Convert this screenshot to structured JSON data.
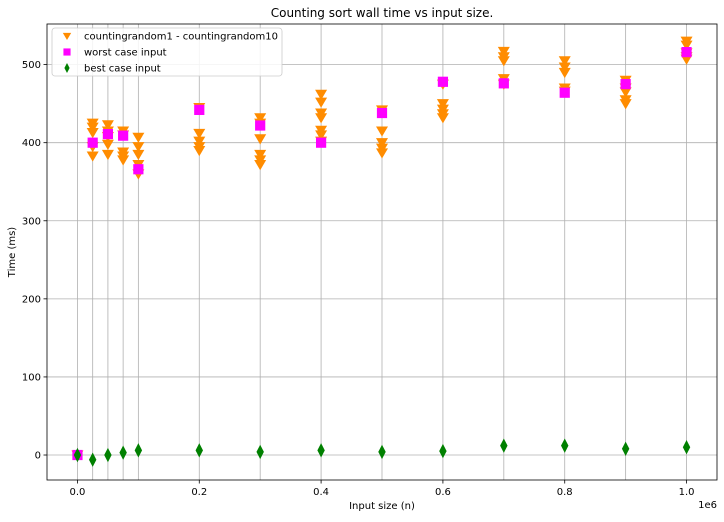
{
  "chart_data": {
    "type": "scatter",
    "title": "Counting sort wall time vs input size.",
    "xlabel": "Input size (n)",
    "ylabel": "Time (ms)",
    "x_offset_text": "1e6",
    "xlim": [
      -0.05,
      1.05
    ],
    "ylim": [
      -32,
      552
    ],
    "grid": true,
    "legend_position": "top-left",
    "x_ticks": [
      {
        "value": 0.0,
        "label": "0.0"
      },
      {
        "value": 0.2,
        "label": "0.2"
      },
      {
        "value": 0.4,
        "label": "0.4"
      },
      {
        "value": 0.6,
        "label": "0.6"
      },
      {
        "value": 0.8,
        "label": "0.8"
      },
      {
        "value": 1.0,
        "label": "1.0"
      }
    ],
    "y_ticks": [
      {
        "value": 0,
        "label": "0"
      },
      {
        "value": 100,
        "label": "100"
      },
      {
        "value": 200,
        "label": "200"
      },
      {
        "value": 300,
        "label": "300"
      },
      {
        "value": 400,
        "label": "400"
      },
      {
        "value": 500,
        "label": "500"
      }
    ],
    "grid_x": [
      0.0,
      0.2,
      0.4,
      0.6,
      0.8,
      1.0,
      0.025,
      0.05,
      0.075,
      0.1,
      0.3,
      0.5,
      0.7,
      0.9
    ],
    "series": [
      {
        "name": "countingrandom1 - countingrandom10",
        "marker": "triangle-down",
        "color": "#ff8c00",
        "points": [
          [
            0.0,
            0
          ],
          [
            0.025,
            425
          ],
          [
            0.025,
            420
          ],
          [
            0.025,
            413
          ],
          [
            0.025,
            395
          ],
          [
            0.025,
            383
          ],
          [
            0.05,
            423
          ],
          [
            0.05,
            415
          ],
          [
            0.05,
            408
          ],
          [
            0.05,
            398
          ],
          [
            0.05,
            385
          ],
          [
            0.075,
            415
          ],
          [
            0.075,
            410
          ],
          [
            0.075,
            388
          ],
          [
            0.075,
            383
          ],
          [
            0.075,
            378
          ],
          [
            0.1,
            407
          ],
          [
            0.1,
            395
          ],
          [
            0.1,
            385
          ],
          [
            0.1,
            372
          ],
          [
            0.1,
            360
          ],
          [
            0.2,
            445
          ],
          [
            0.2,
            412
          ],
          [
            0.2,
            402
          ],
          [
            0.2,
            395
          ],
          [
            0.2,
            390
          ],
          [
            0.3,
            432
          ],
          [
            0.3,
            425
          ],
          [
            0.3,
            405
          ],
          [
            0.3,
            385
          ],
          [
            0.3,
            378
          ],
          [
            0.3,
            372
          ],
          [
            0.4,
            462
          ],
          [
            0.4,
            452
          ],
          [
            0.4,
            438
          ],
          [
            0.4,
            432
          ],
          [
            0.4,
            416
          ],
          [
            0.4,
            410
          ],
          [
            0.4,
            402
          ],
          [
            0.5,
            442
          ],
          [
            0.5,
            415
          ],
          [
            0.5,
            400
          ],
          [
            0.5,
            393
          ],
          [
            0.5,
            387
          ],
          [
            0.6,
            450
          ],
          [
            0.6,
            443
          ],
          [
            0.6,
            437
          ],
          [
            0.6,
            432
          ],
          [
            0.6,
            475
          ],
          [
            0.7,
            517
          ],
          [
            0.7,
            510
          ],
          [
            0.7,
            505
          ],
          [
            0.7,
            482
          ],
          [
            0.7,
            475
          ],
          [
            0.8,
            505
          ],
          [
            0.8,
            497
          ],
          [
            0.8,
            490
          ],
          [
            0.8,
            470
          ],
          [
            0.8,
            466
          ],
          [
            0.9,
            480
          ],
          [
            0.9,
            470
          ],
          [
            0.9,
            465
          ],
          [
            0.9,
            455
          ],
          [
            0.9,
            450
          ],
          [
            1.0,
            530
          ],
          [
            1.0,
            525
          ],
          [
            1.0,
            515
          ],
          [
            1.0,
            510
          ],
          [
            1.0,
            507
          ]
        ]
      },
      {
        "name": "worst case input",
        "marker": "square",
        "color": "#ff00ff",
        "points": [
          [
            0.0,
            0
          ],
          [
            0.025,
            400
          ],
          [
            0.05,
            411
          ],
          [
            0.075,
            409
          ],
          [
            0.1,
            366
          ],
          [
            0.2,
            442
          ],
          [
            0.3,
            422
          ],
          [
            0.4,
            400
          ],
          [
            0.5,
            438
          ],
          [
            0.6,
            478
          ],
          [
            0.7,
            476
          ],
          [
            0.8,
            464
          ],
          [
            0.9,
            475
          ],
          [
            1.0,
            516
          ]
        ]
      },
      {
        "name": "best case input",
        "marker": "thin-diamond",
        "color": "#008000",
        "points": [
          [
            0.0,
            0
          ],
          [
            0.025,
            -6
          ],
          [
            0.05,
            0
          ],
          [
            0.075,
            3
          ],
          [
            0.1,
            6
          ],
          [
            0.2,
            6
          ],
          [
            0.3,
            4
          ],
          [
            0.4,
            6
          ],
          [
            0.5,
            4
          ],
          [
            0.6,
            5
          ],
          [
            0.7,
            12
          ],
          [
            0.8,
            12
          ],
          [
            0.9,
            8
          ],
          [
            1.0,
            10
          ]
        ]
      }
    ]
  }
}
